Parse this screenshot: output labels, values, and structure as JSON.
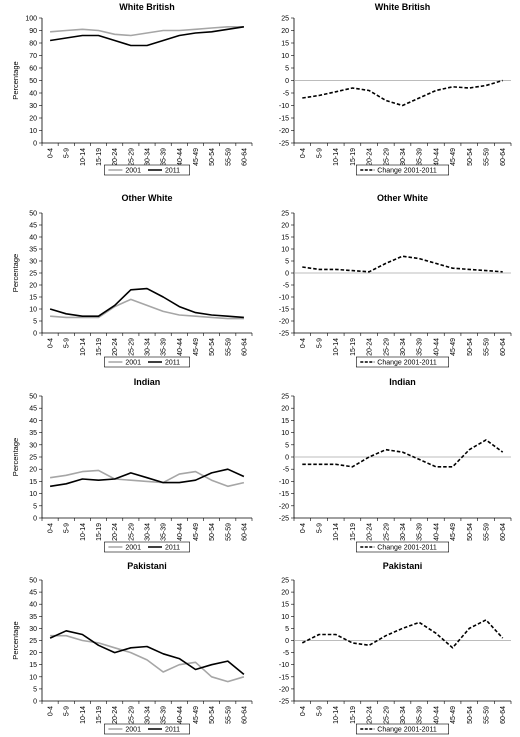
{
  "x_categories": [
    "0-4",
    "5-9",
    "10-14",
    "15-19",
    "20-24",
    "25-29",
    "30-34",
    "35-39",
    "40-44",
    "45-49",
    "50-54",
    "55-59",
    "60-64"
  ],
  "colors": {
    "2001": "#a6a6a6",
    "2011": "#000000",
    "change": "#000000",
    "zero_line": "#a6a6a6"
  },
  "chart_data": [
    {
      "id": "wb-level",
      "type": "line",
      "title": "White British",
      "ylabel": "Percentage",
      "ylim": [
        0,
        100
      ],
      "ystep": 10,
      "legend": "bottom",
      "grid": false,
      "series": [
        {
          "name": "2001",
          "color": "#a6a6a6",
          "style": "solid",
          "values": [
            89,
            90,
            91,
            90,
            87,
            86,
            88,
            90,
            90,
            91,
            92,
            93,
            93
          ]
        },
        {
          "name": "2011",
          "color": "#000000",
          "style": "solid",
          "values": [
            82,
            84,
            86,
            86,
            82,
            78,
            78,
            82,
            86,
            88,
            89,
            91,
            93
          ]
        }
      ]
    },
    {
      "id": "wb-change",
      "type": "line",
      "title": "White British",
      "ylabel": "",
      "ylim": [
        -25,
        25
      ],
      "ystep": 5,
      "legend": "bottom",
      "grid": false,
      "zero_line": true,
      "series": [
        {
          "name": "Change 2001-2011",
          "color": "#000000",
          "style": "dashed",
          "values": [
            -7,
            -6,
            -4.5,
            -3,
            -4,
            -8,
            -10,
            -7,
            -4,
            -2.5,
            -3,
            -2,
            0
          ]
        }
      ]
    },
    {
      "id": "ow-level",
      "type": "line",
      "title": "Other White",
      "ylabel": "Percentage",
      "ylim": [
        0,
        50
      ],
      "ystep": 5,
      "legend": "bottom",
      "grid": false,
      "series": [
        {
          "name": "2001",
          "color": "#a6a6a6",
          "style": "solid",
          "values": [
            7,
            6.5,
            6.5,
            6.5,
            11,
            14,
            11.5,
            9,
            7.5,
            7,
            6.5,
            6,
            6
          ]
        },
        {
          "name": "2011",
          "color": "#000000",
          "style": "solid",
          "values": [
            10,
            8,
            7,
            7,
            11.5,
            18,
            18.5,
            15,
            11,
            8.5,
            7.5,
            7,
            6.5
          ]
        }
      ]
    },
    {
      "id": "ow-change",
      "type": "line",
      "title": "Other White",
      "ylabel": "",
      "ylim": [
        -25,
        25
      ],
      "ystep": 5,
      "legend": "bottom",
      "grid": false,
      "zero_line": true,
      "series": [
        {
          "name": "Change 2001-2011",
          "color": "#000000",
          "style": "dashed",
          "values": [
            2.5,
            1.5,
            1.5,
            1,
            0.5,
            4,
            7,
            6,
            4,
            2,
            1.5,
            1,
            0.5
          ]
        }
      ]
    },
    {
      "id": "in-level",
      "type": "line",
      "title": "Indian",
      "ylabel": "Percentage",
      "ylim": [
        0,
        50
      ],
      "ystep": 5,
      "legend": "bottom",
      "grid": false,
      "series": [
        {
          "name": "2001",
          "color": "#a6a6a6",
          "style": "solid",
          "values": [
            16.5,
            17.5,
            19,
            19.5,
            16,
            15.5,
            15,
            14.5,
            18,
            19,
            15.5,
            13,
            14.5
          ]
        },
        {
          "name": "2011",
          "color": "#000000",
          "style": "solid",
          "values": [
            13,
            14,
            16,
            15.5,
            16,
            18.5,
            16.5,
            14.5,
            14.5,
            15.5,
            18.5,
            20,
            17
          ]
        }
      ]
    },
    {
      "id": "in-change",
      "type": "line",
      "title": "Indian",
      "ylabel": "",
      "ylim": [
        -25,
        25
      ],
      "ystep": 5,
      "legend": "bottom",
      "grid": false,
      "zero_line": true,
      "series": [
        {
          "name": "Change 2001-2011",
          "color": "#000000",
          "style": "dashed",
          "values": [
            -3,
            -3,
            -3,
            -4,
            0,
            3,
            2,
            -1,
            -4,
            -4,
            3,
            7,
            2
          ]
        }
      ]
    },
    {
      "id": "pk-level",
      "type": "line",
      "title": "Pakistani",
      "ylabel": "Percentage",
      "ylim": [
        0,
        50
      ],
      "ystep": 5,
      "legend": "bottom",
      "grid": false,
      "series": [
        {
          "name": "2001",
          "color": "#a6a6a6",
          "style": "solid",
          "values": [
            27,
            27,
            25,
            24,
            22,
            20,
            17,
            12,
            15,
            16,
            10,
            8,
            10
          ]
        },
        {
          "name": "2011",
          "color": "#000000",
          "style": "solid",
          "values": [
            26,
            29,
            27.5,
            23,
            20,
            22,
            22.5,
            19.5,
            17.5,
            13,
            15,
            16.5,
            11
          ]
        }
      ]
    },
    {
      "id": "pk-change",
      "type": "line",
      "title": "Pakistani",
      "ylabel": "",
      "ylim": [
        -25,
        25
      ],
      "ystep": 5,
      "legend": "bottom",
      "grid": false,
      "zero_line": true,
      "series": [
        {
          "name": "Change 2001-2011",
          "color": "#000000",
          "style": "dashed",
          "values": [
            -1,
            2.5,
            2.5,
            -1,
            -2,
            2,
            5,
            7.5,
            3,
            -3,
            5,
            8.5,
            1
          ]
        }
      ]
    }
  ]
}
